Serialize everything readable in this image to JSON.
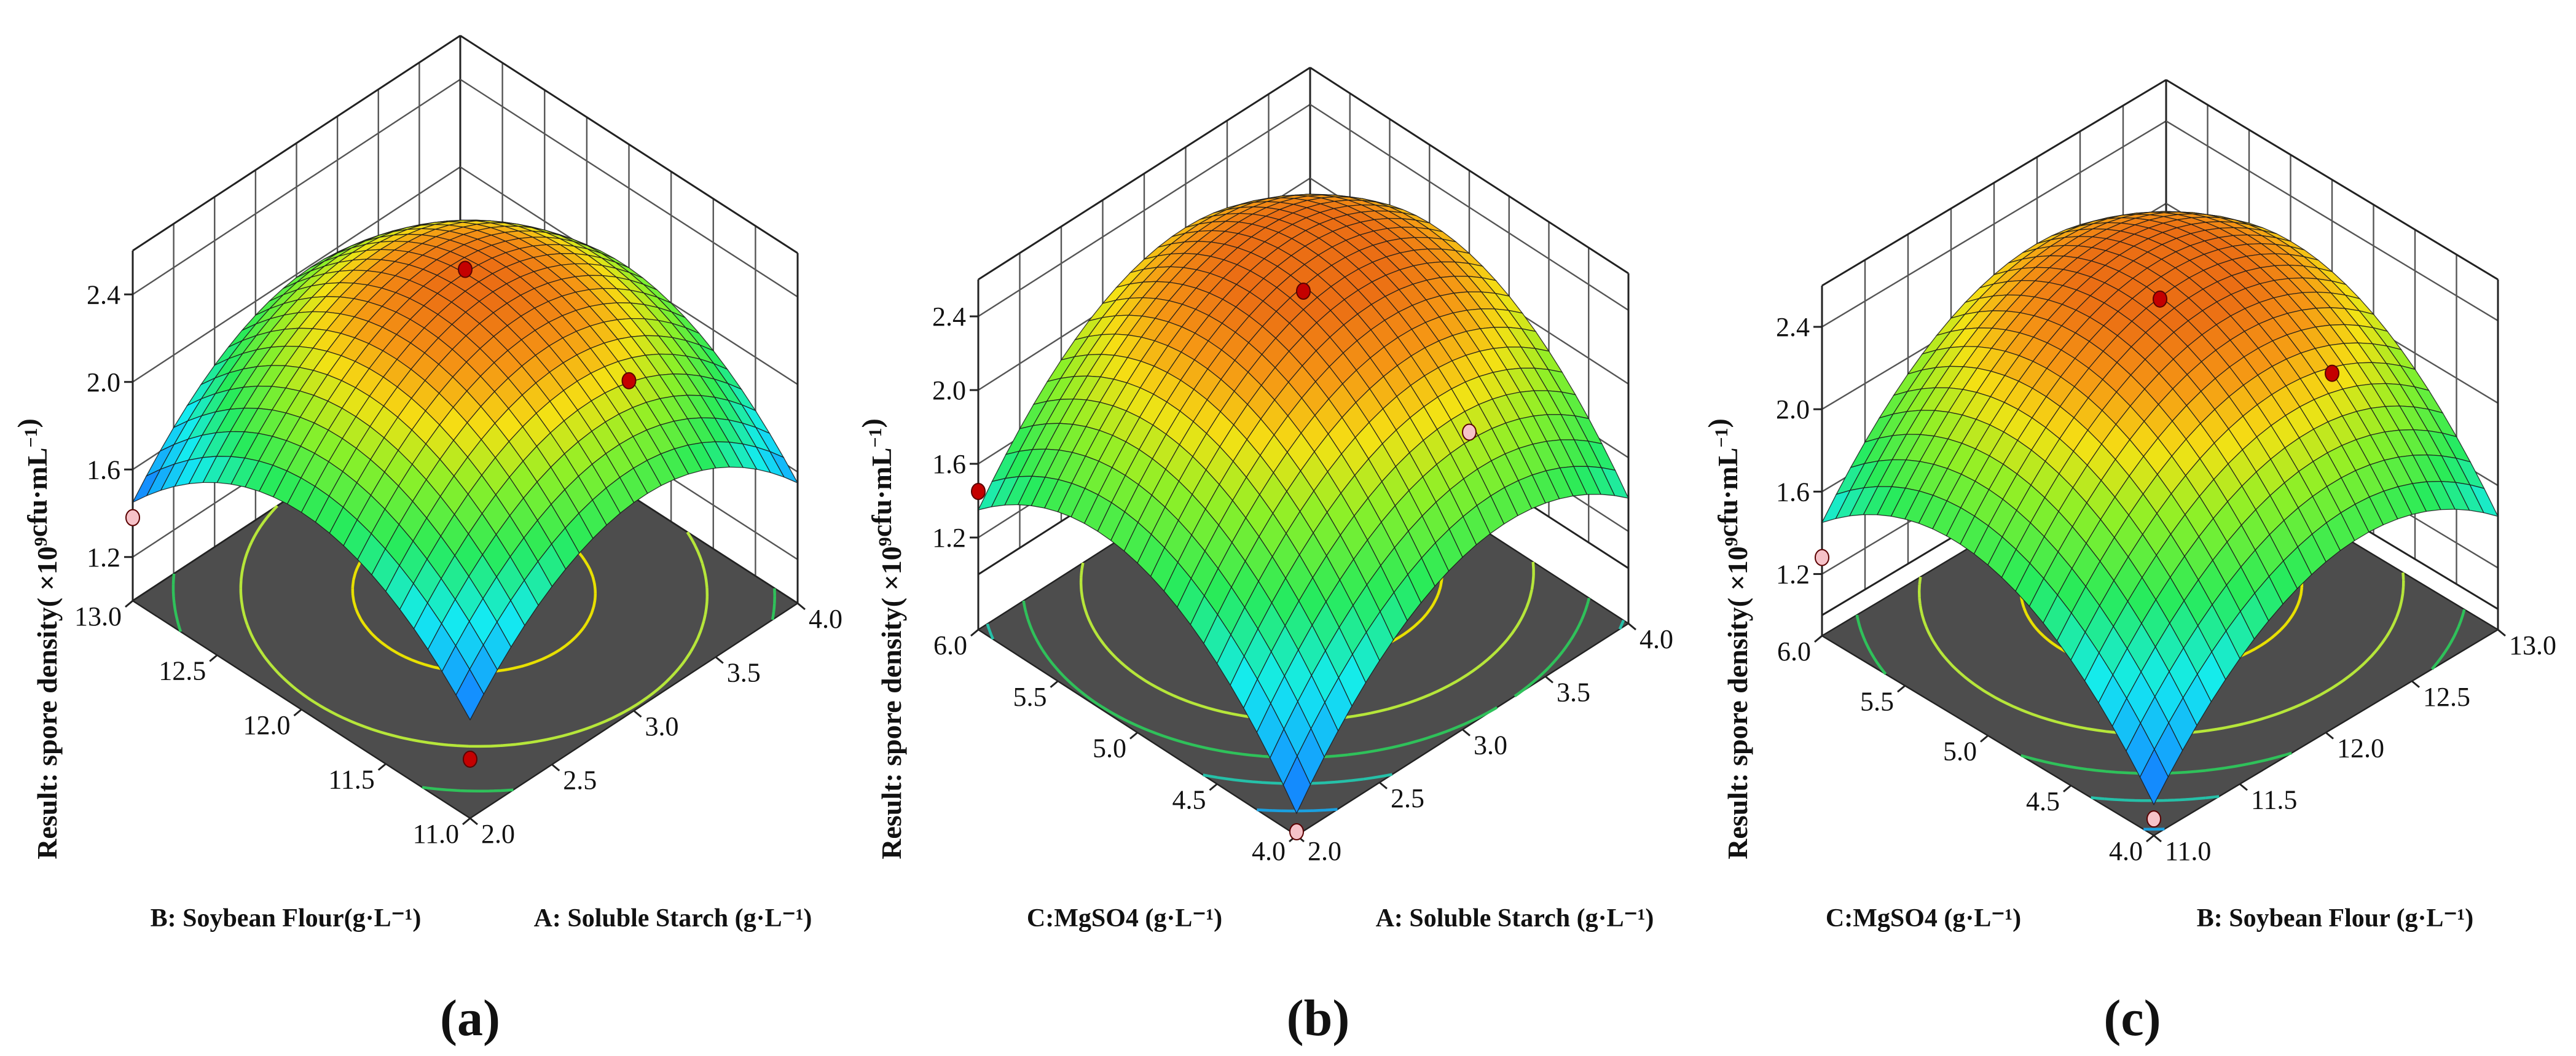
{
  "chart_data": [
    {
      "type": "surface",
      "panel": "(a)",
      "zlabel_parts": [
        "Result: spore density( ×10",
        "9",
        "cfu·mL",
        "−1",
        ")"
      ],
      "x_axis_title": "A: Soluble Starch (g·L⁻¹)",
      "y_axis_title": "B: Soybean Flour(g·L⁻¹)",
      "x_range": [
        2.0,
        4.0
      ],
      "y_range": [
        11.0,
        13.0
      ],
      "x_ticks": [
        "2.0",
        "2.5",
        "3.0",
        "3.5",
        "4.0"
      ],
      "y_ticks": [
        "11.0",
        "11.5",
        "12.0",
        "12.5",
        "13.0"
      ],
      "z_ticks": [
        "1.2",
        "1.6",
        "2.0",
        "2.4"
      ],
      "z_range": [
        1.0,
        2.6
      ],
      "surface": {
        "peak": 2.42,
        "corner_low": 1.45,
        "corner_left": 1.45,
        "corner_right": 1.55,
        "corner_back": 1.62
      },
      "design_points": [
        {
          "x": 3.0,
          "y": 12.0,
          "z": 2.52,
          "above": true
        },
        {
          "x": 2.0,
          "y": 11.0,
          "z": 1.27,
          "above": true
        },
        {
          "x": 4.0,
          "y": 12.0,
          "z": 1.52,
          "above": true
        },
        {
          "x": 2.0,
          "y": 13.0,
          "z": 1.38,
          "above": false
        }
      ]
    },
    {
      "type": "surface",
      "panel": "(b)",
      "zlabel_parts": [
        "Result: spore density( ×10",
        "9",
        "cfu·mL",
        "−1",
        ")"
      ],
      "x_axis_title": "A: Soluble Starch (g·L⁻¹)",
      "y_axis_title": "C:MgSO4 (g·L⁻¹)",
      "x_range": [
        2.0,
        4.0
      ],
      "y_range": [
        4.0,
        6.0
      ],
      "x_ticks": [
        "2.0",
        "2.5",
        "3.0",
        "3.5",
        "4.0"
      ],
      "y_ticks": [
        "4.0",
        "4.5",
        "5.0",
        "5.5",
        "6.0"
      ],
      "z_ticks": [
        "1.2",
        "1.6",
        "2.0",
        "2.4"
      ],
      "z_range": [
        0.7,
        2.6
      ],
      "surface": {
        "peak": 2.42,
        "corner_low": 0.82,
        "corner_left": 1.35,
        "corner_right": 1.38,
        "corner_back": 1.85
      },
      "design_points": [
        {
          "x": 3.0,
          "y": 5.0,
          "z": 2.52,
          "above": true
        },
        {
          "x": 2.0,
          "y": 6.0,
          "z": 1.45,
          "above": true
        },
        {
          "x": 4.0,
          "y": 5.0,
          "z": 1.18,
          "above": false
        },
        {
          "x": 2.0,
          "y": 4.0,
          "z": 0.72,
          "above": false
        }
      ]
    },
    {
      "type": "surface",
      "panel": "(c)",
      "zlabel_parts": [
        "Result: spore density( ×10",
        "9",
        "cfu·mL",
        "−1",
        ")"
      ],
      "x_axis_title": "B: Soybean Flour (g·L⁻¹)",
      "y_axis_title": "C:MgSO4 (g·L⁻¹)",
      "x_range": [
        11.0,
        13.0
      ],
      "y_range": [
        4.0,
        6.0
      ],
      "x_ticks": [
        "11.0",
        "11.5",
        "12.0",
        "12.5",
        "13.0"
      ],
      "y_ticks": [
        "4.0",
        "4.5",
        "5.0",
        "5.5",
        "6.0"
      ],
      "z_ticks": [
        "1.2",
        "1.6",
        "2.0",
        "2.4"
      ],
      "z_range": [
        0.9,
        2.6
      ],
      "surface": {
        "peak": 2.42,
        "corner_low": 1.05,
        "corner_left": 1.45,
        "corner_right": 1.45,
        "corner_back": 1.9
      },
      "design_points": [
        {
          "x": 12.0,
          "y": 5.0,
          "z": 2.52,
          "above": true
        },
        {
          "x": 13.0,
          "y": 5.0,
          "z": 1.66,
          "above": true
        },
        {
          "x": 11.0,
          "y": 6.0,
          "z": 1.28,
          "above": false
        },
        {
          "x": 11.0,
          "y": 4.0,
          "z": 0.98,
          "above": false
        }
      ]
    }
  ]
}
